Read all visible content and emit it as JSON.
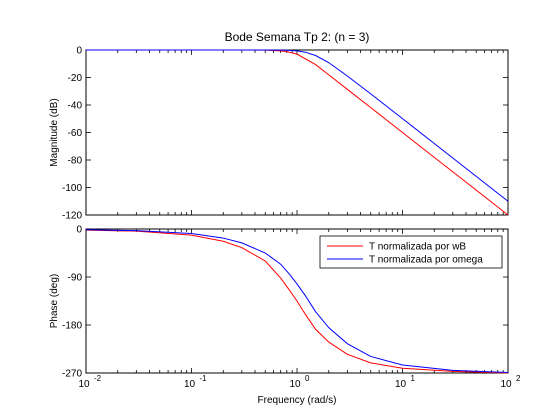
{
  "chart_data": [
    {
      "type": "line",
      "title": "Bode Semana Tp 2: (n = 3)",
      "xlabel": "",
      "ylabel": "Magnitude (dB)",
      "xscale": "log",
      "xlim": [
        0.01,
        100
      ],
      "ylim": [
        -120,
        0
      ],
      "yticks": [
        "0",
        "-20",
        "-40",
        "-60",
        "-80",
        "-100",
        "-120"
      ],
      "grid": false,
      "series": [
        {
          "name": "T normalizada por wB",
          "color": "#ff0000",
          "x": [
            0.01,
            0.1,
            0.3,
            0.5,
            0.7,
            0.8,
            1.0,
            1.5,
            2,
            3,
            5,
            10,
            20,
            50,
            100
          ],
          "y": [
            0,
            0,
            0,
            -0.1,
            -0.6,
            -1.2,
            -3.0,
            -10.6,
            -18.1,
            -28.6,
            -41.9,
            -60.0,
            -78.1,
            -101.9,
            -120.0
          ]
        },
        {
          "name": "T normalizada por omega",
          "color": "#0000ff",
          "x": [
            0.01,
            0.1,
            0.3,
            0.5,
            0.8,
            1.0,
            1.2,
            1.5,
            2,
            3,
            5,
            10,
            20,
            50,
            100
          ],
          "y": [
            0,
            0,
            0,
            0,
            -0.2,
            -0.6,
            -1.6,
            -4.0,
            -9.2,
            -18.9,
            -31.9,
            -49.9,
            -68.0,
            -91.9,
            -110.0
          ]
        }
      ]
    },
    {
      "type": "line",
      "title": "",
      "xlabel": "Frequency  (rad/s)",
      "ylabel": "Phase (deg)",
      "xscale": "log",
      "xlim": [
        0.01,
        100
      ],
      "ylim": [
        -270,
        0
      ],
      "yticks": [
        "0",
        "-90",
        "-180",
        "-270"
      ],
      "xticks": [
        "10",
        "10",
        "10",
        "10",
        "10"
      ],
      "xtick_exponents": [
        "-2",
        "-1",
        "0",
        "1",
        "2"
      ],
      "grid": false,
      "legend": "top-right",
      "series": [
        {
          "name": "T normalizada por wB",
          "color": "#ff0000",
          "x": [
            0.01,
            0.03,
            0.1,
            0.2,
            0.3,
            0.5,
            0.7,
            0.85,
            1.0,
            1.2,
            1.5,
            2,
            3,
            5,
            10,
            30,
            100
          ],
          "y": [
            -2,
            -4,
            -11.5,
            -23,
            -35,
            -60,
            -92,
            -115,
            -135,
            -160,
            -188,
            -212,
            -235,
            -251,
            -261,
            -267,
            -270
          ]
        },
        {
          "name": "T normalizada por omega",
          "color": "#0000ff",
          "x": [
            0.01,
            0.03,
            0.1,
            0.2,
            0.3,
            0.5,
            0.7,
            0.85,
            1.0,
            1.2,
            1.5,
            2,
            3,
            5,
            10,
            30,
            100
          ],
          "y": [
            -1.5,
            -3,
            -8.5,
            -17,
            -26,
            -45,
            -66,
            -85,
            -103,
            -125,
            -155,
            -185,
            -215,
            -239,
            -255,
            -265,
            -269
          ]
        }
      ]
    }
  ]
}
